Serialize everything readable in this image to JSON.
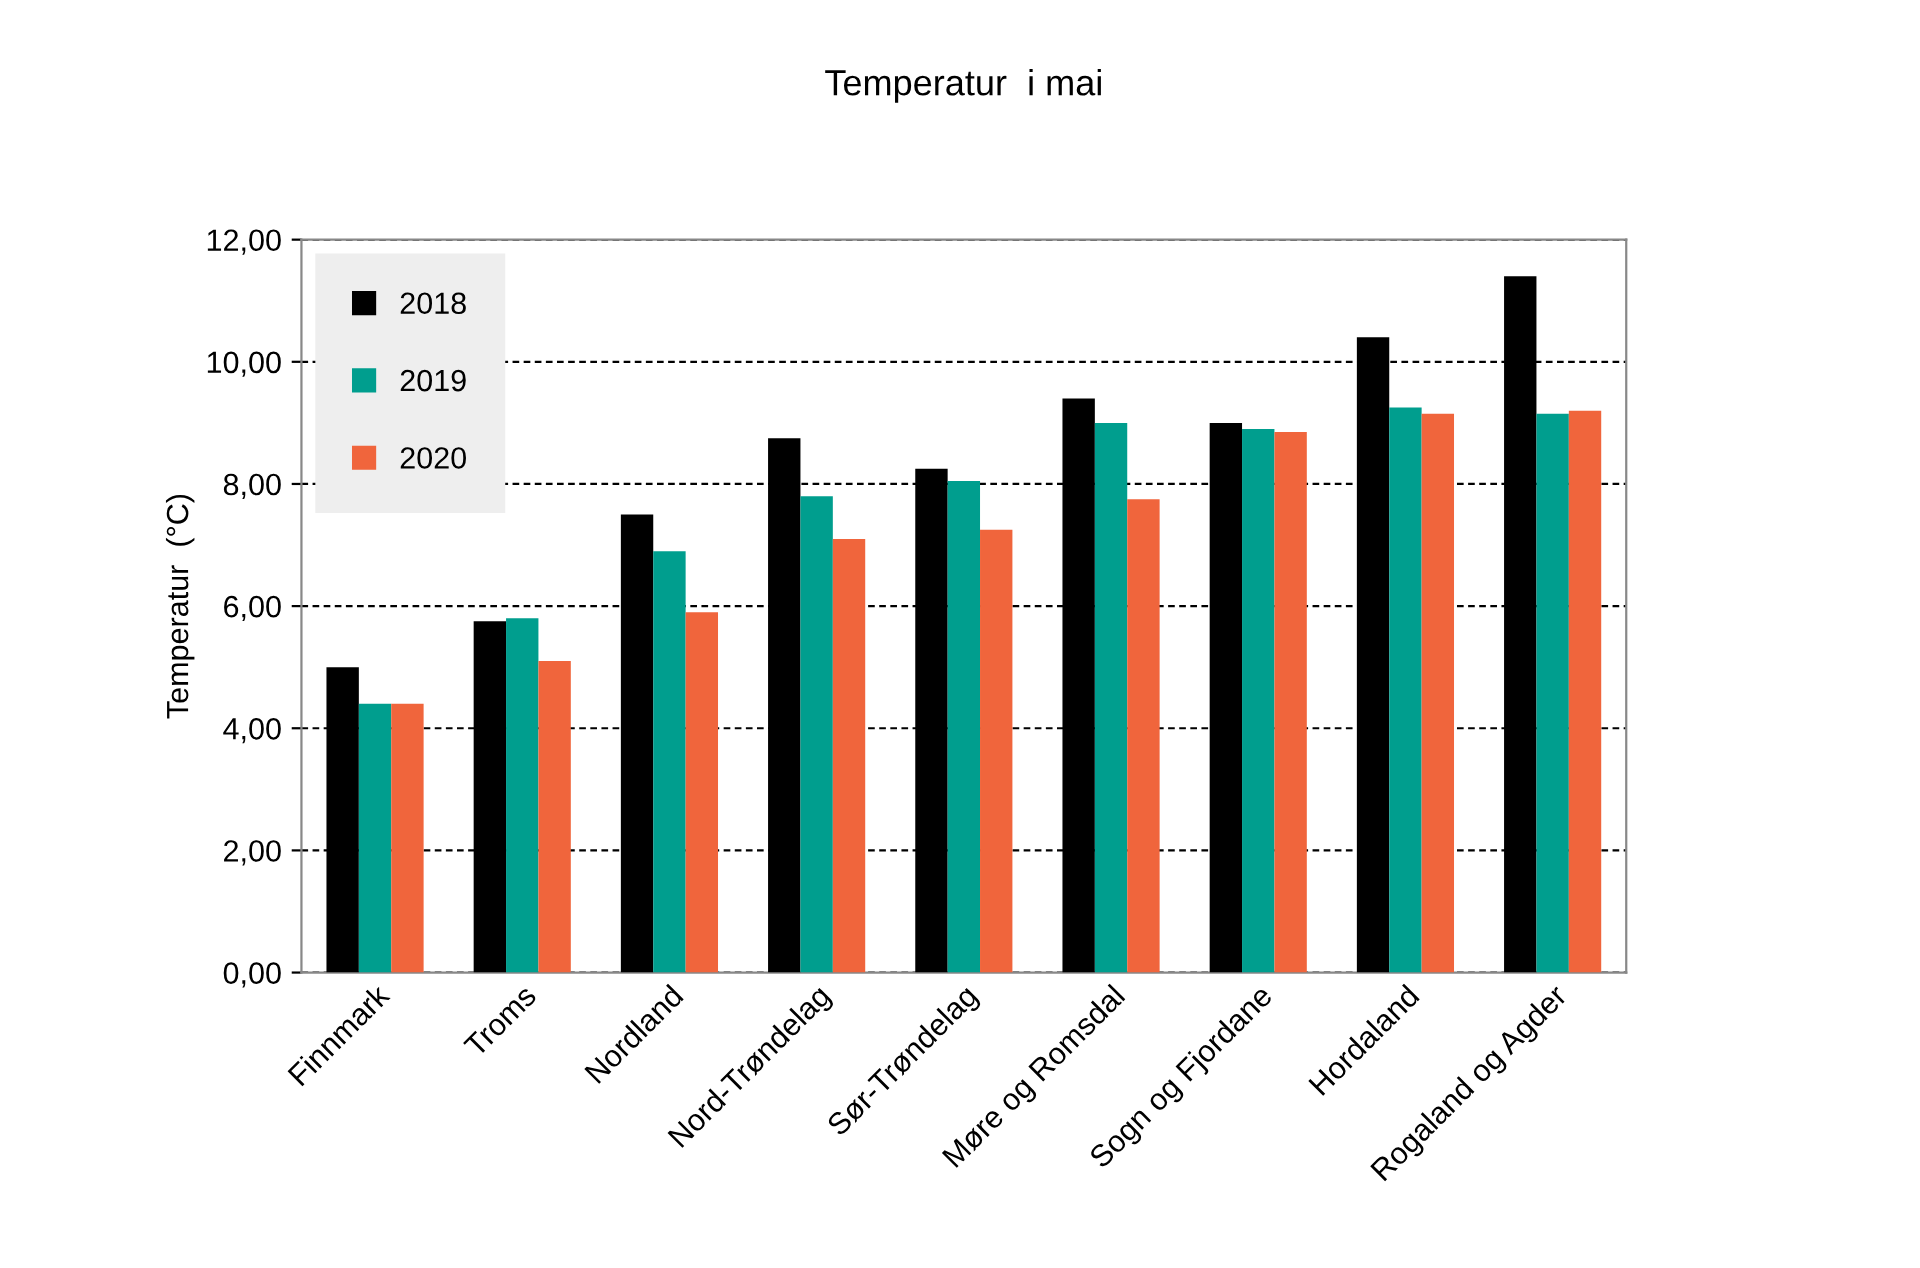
{
  "chart_data": {
    "type": "bar",
    "title": "Temperatur  i mai",
    "ylabel": "Temperatur  (°C)",
    "categories": [
      "Finnmark",
      "Troms",
      "Nordland",
      "Nord-Trøndelag",
      "Sør-Trøndelag",
      "Møre og Romsdal",
      "Sogn og Fjordane",
      "Hordaland",
      "Rogaland og Agder"
    ],
    "series": [
      {
        "name": "2018",
        "color": "#000000",
        "values": [
          5.0,
          5.75,
          7.5,
          8.75,
          8.25,
          9.4,
          9.0,
          10.4,
          11.4
        ]
      },
      {
        "name": "2019",
        "color": "#009e8e",
        "values": [
          4.4,
          5.8,
          6.9,
          7.8,
          8.05,
          9.0,
          8.9,
          9.25,
          9.15
        ]
      },
      {
        "name": "2020",
        "color": "#f0653c",
        "values": [
          4.4,
          5.1,
          5.9,
          7.1,
          7.25,
          7.75,
          8.85,
          9.15,
          9.2
        ]
      }
    ],
    "ylim": [
      0,
      12
    ],
    "yticks": [
      {
        "value": 0,
        "label": "0,00"
      },
      {
        "value": 2,
        "label": "2,00"
      },
      {
        "value": 4,
        "label": "4,00"
      },
      {
        "value": 6,
        "label": "6,00"
      },
      {
        "value": 8,
        "label": "8,00"
      },
      {
        "value": 10,
        "label": "10,00"
      },
      {
        "value": 12,
        "label": "12,00"
      }
    ],
    "grid": "y",
    "legend": "top left"
  }
}
